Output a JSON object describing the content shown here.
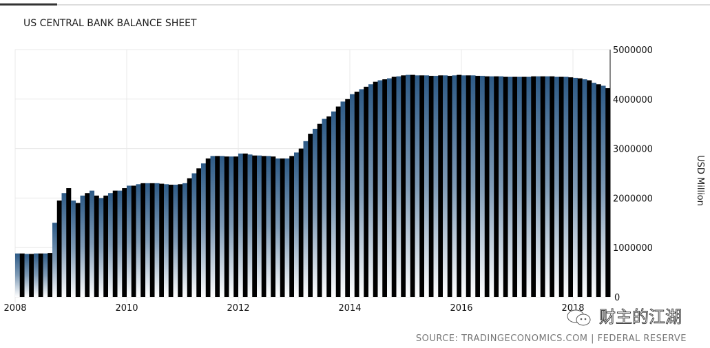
{
  "chart_data": {
    "type": "bar",
    "title": "US CENTRAL BANK BALANCE SHEET",
    "ylabel": "USD Million",
    "xlabel": "",
    "ylim": [
      0,
      5000000
    ],
    "yticks": [
      "0",
      "1000000",
      "2000000",
      "3000000",
      "4000000",
      "5000000"
    ],
    "xticks": [
      "2008",
      "2010",
      "2012",
      "2014",
      "2016",
      "2018"
    ],
    "xlim": [
      "2008-01",
      "2018-08"
    ],
    "grid": true,
    "frequency": "monthly",
    "start": "2008-01",
    "values": [
      880000,
      880000,
      870000,
      870000,
      880000,
      880000,
      880000,
      890000,
      1500000,
      1950000,
      2100000,
      2200000,
      1950000,
      1900000,
      2050000,
      2100000,
      2150000,
      2050000,
      2000000,
      2050000,
      2100000,
      2150000,
      2150000,
      2200000,
      2250000,
      2250000,
      2280000,
      2300000,
      2300000,
      2300000,
      2300000,
      2290000,
      2280000,
      2270000,
      2270000,
      2280000,
      2300000,
      2400000,
      2500000,
      2600000,
      2700000,
      2800000,
      2850000,
      2850000,
      2850000,
      2840000,
      2840000,
      2840000,
      2900000,
      2900000,
      2880000,
      2860000,
      2860000,
      2850000,
      2850000,
      2840000,
      2800000,
      2800000,
      2800000,
      2850000,
      2920000,
      3000000,
      3150000,
      3300000,
      3400000,
      3500000,
      3600000,
      3650000,
      3750000,
      3850000,
      3950000,
      4000000,
      4100000,
      4150000,
      4200000,
      4250000,
      4300000,
      4350000,
      4380000,
      4400000,
      4420000,
      4450000,
      4460000,
      4480000,
      4490000,
      4490000,
      4480000,
      4480000,
      4480000,
      4470000,
      4470000,
      4480000,
      4480000,
      4470000,
      4480000,
      4490000,
      4480000,
      4480000,
      4480000,
      4470000,
      4470000,
      4460000,
      4460000,
      4460000,
      4460000,
      4450000,
      4450000,
      4450000,
      4450000,
      4450000,
      4450000,
      4460000,
      4460000,
      4460000,
      4460000,
      4460000,
      4450000,
      4450000,
      4450000,
      4440000,
      4430000,
      4420000,
      4400000,
      4380000,
      4330000,
      4300000,
      4270000,
      4220000
    ],
    "colors": {
      "dark": "#000000",
      "bar_top": "#2d5a86",
      "bar_bottom": "#ffffff"
    }
  },
  "source": "SOURCE: TRADINGECONOMICS.COM | FEDERAL RESERVE",
  "watermark": "财主的江湖"
}
